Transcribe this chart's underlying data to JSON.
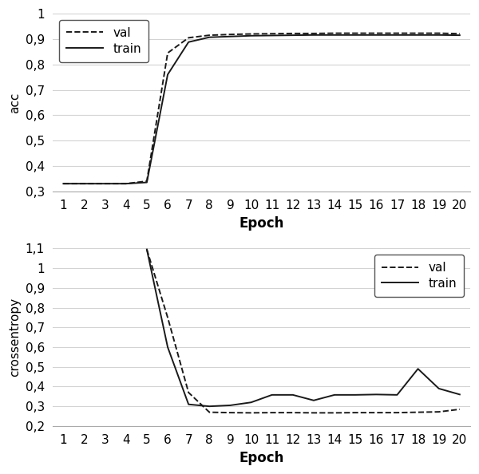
{
  "epochs": [
    1,
    2,
    3,
    4,
    5,
    6,
    7,
    8,
    9,
    10,
    11,
    12,
    13,
    14,
    15,
    16,
    17,
    18,
    19,
    20
  ],
  "acc_val": [
    0.33,
    0.33,
    0.33,
    0.33,
    0.34,
    0.845,
    0.905,
    0.915,
    0.918,
    0.92,
    0.921,
    0.922,
    0.922,
    0.923,
    0.923,
    0.923,
    0.923,
    0.923,
    0.923,
    0.921
  ],
  "acc_train": [
    0.33,
    0.33,
    0.33,
    0.33,
    0.335,
    0.76,
    0.888,
    0.907,
    0.91,
    0.913,
    0.914,
    0.915,
    0.916,
    0.916,
    0.916,
    0.916,
    0.916,
    0.916,
    0.916,
    0.915
  ],
  "loss_val": [
    null,
    null,
    null,
    null,
    1.095,
    0.75,
    0.37,
    0.27,
    0.268,
    0.267,
    0.268,
    0.268,
    0.267,
    0.267,
    0.268,
    0.268,
    0.268,
    0.27,
    0.272,
    0.285
  ],
  "loss_train": [
    null,
    null,
    null,
    null,
    1.095,
    0.6,
    0.31,
    0.3,
    0.305,
    0.32,
    0.358,
    0.358,
    0.33,
    0.358,
    0.358,
    0.36,
    0.358,
    0.49,
    0.39,
    0.36
  ],
  "acc_ylim": [
    0.3,
    1.0
  ],
  "acc_yticks": [
    0.3,
    0.4,
    0.5,
    0.6,
    0.7,
    0.8,
    0.9,
    1.0
  ],
  "acc_ytick_labels": [
    "0,3",
    "0,4",
    "0,5",
    "0,6",
    "0,7",
    "0,8",
    "0,9",
    "1"
  ],
  "loss_ylim": [
    0.2,
    1.1
  ],
  "loss_yticks": [
    0.2,
    0.3,
    0.4,
    0.5,
    0.6,
    0.7,
    0.8,
    0.9,
    1.0,
    1.1
  ],
  "loss_ytick_labels": [
    "0,2",
    "0,3",
    "0,4",
    "0,5",
    "0,6",
    "0,7",
    "0,8",
    "0,9",
    "1",
    "1,1"
  ],
  "xlabel": "Epoch",
  "acc_ylabel": "acc",
  "loss_ylabel": "crossentropy",
  "line_color": "#1a1a1a",
  "background_color": "#ffffff",
  "grid_color": "#d3d3d3",
  "legend_val_label": "val",
  "legend_train_label": "train",
  "tick_fontsize": 11,
  "label_fontsize": 12,
  "ylabel_fontsize": 11
}
